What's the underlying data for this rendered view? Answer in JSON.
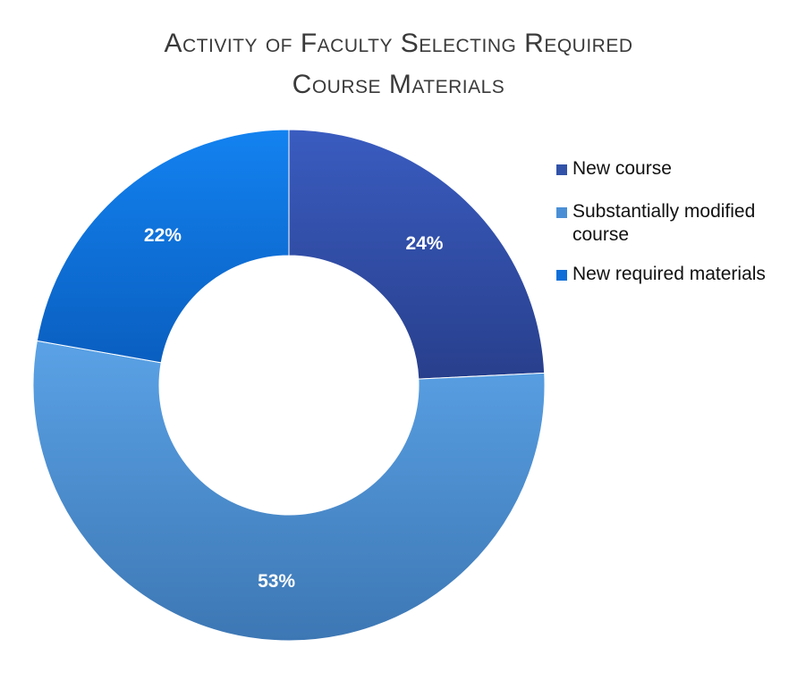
{
  "chart_data": {
    "type": "pie",
    "donut": true,
    "title": [
      "Activity of Faculty Selecting Required",
      "Course Materials"
    ],
    "categories": [
      "New course",
      "Substantially modified course",
      "New required materials"
    ],
    "values": [
      24,
      53,
      22
    ],
    "labels": [
      "24%",
      "53%",
      "22%"
    ],
    "colors": [
      "#3152a8",
      "#4a8fd6",
      "#0f6fd8"
    ],
    "legend_position": "right"
  }
}
